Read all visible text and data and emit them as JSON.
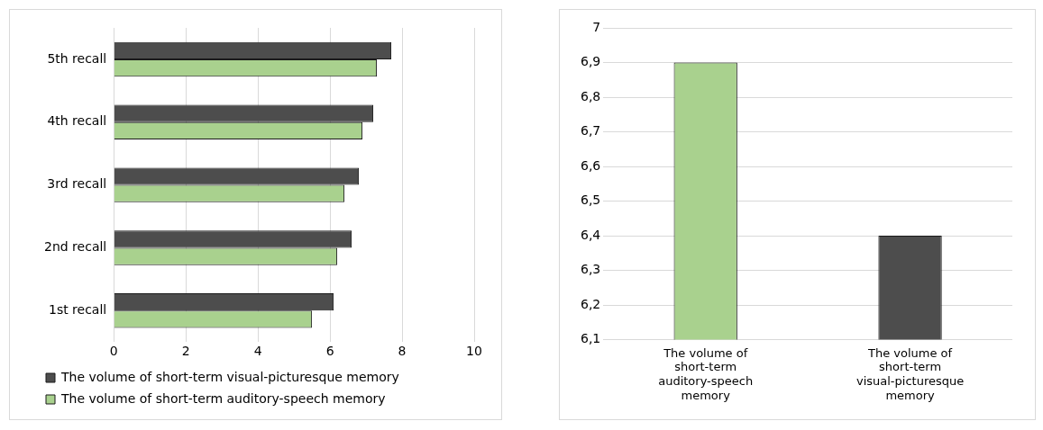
{
  "chart_data": [
    {
      "type": "bar",
      "orientation": "horizontal",
      "categories": [
        "5th recall",
        "4th recall",
        "3rd recall",
        "2nd recall",
        "1st recall"
      ],
      "series": [
        {
          "name": "The volume of short-term visual-picturesque memory",
          "color": "#4d4d4d",
          "values": [
            7.7,
            7.2,
            6.8,
            6.6,
            6.1
          ]
        },
        {
          "name": "The volume of short-term auditory-speech memory",
          "color": "#a9d18e",
          "values": [
            7.3,
            6.9,
            6.4,
            6.2,
            5.5
          ]
        }
      ],
      "xlim": [
        0,
        10
      ],
      "xticks": [
        0,
        2,
        4,
        6,
        8,
        10
      ],
      "grid": "x",
      "legend": "bottom"
    },
    {
      "type": "bar",
      "categories": [
        "The volume of short-term auditory-speech memory",
        "The volume of short-term visual-picturesque memory"
      ],
      "values": [
        6.9,
        6.4
      ],
      "colors": [
        "#a9d18e",
        "#4d4d4d"
      ],
      "ylim": [
        6.1,
        7
      ],
      "yticks": [
        {
          "value": 6.1,
          "label": "6,1"
        },
        {
          "value": 6.2,
          "label": "6,2"
        },
        {
          "value": 6.3,
          "label": "6,3"
        },
        {
          "value": 6.4,
          "label": "6,4"
        },
        {
          "value": 6.5,
          "label": "6,5"
        },
        {
          "value": 6.6,
          "label": "6,6"
        },
        {
          "value": 6.7,
          "label": "6,7"
        },
        {
          "value": 6.8,
          "label": "6,8"
        },
        {
          "value": 6.9,
          "label": "6,9"
        },
        {
          "value": 7,
          "label": "7"
        }
      ],
      "grid": "y"
    }
  ]
}
